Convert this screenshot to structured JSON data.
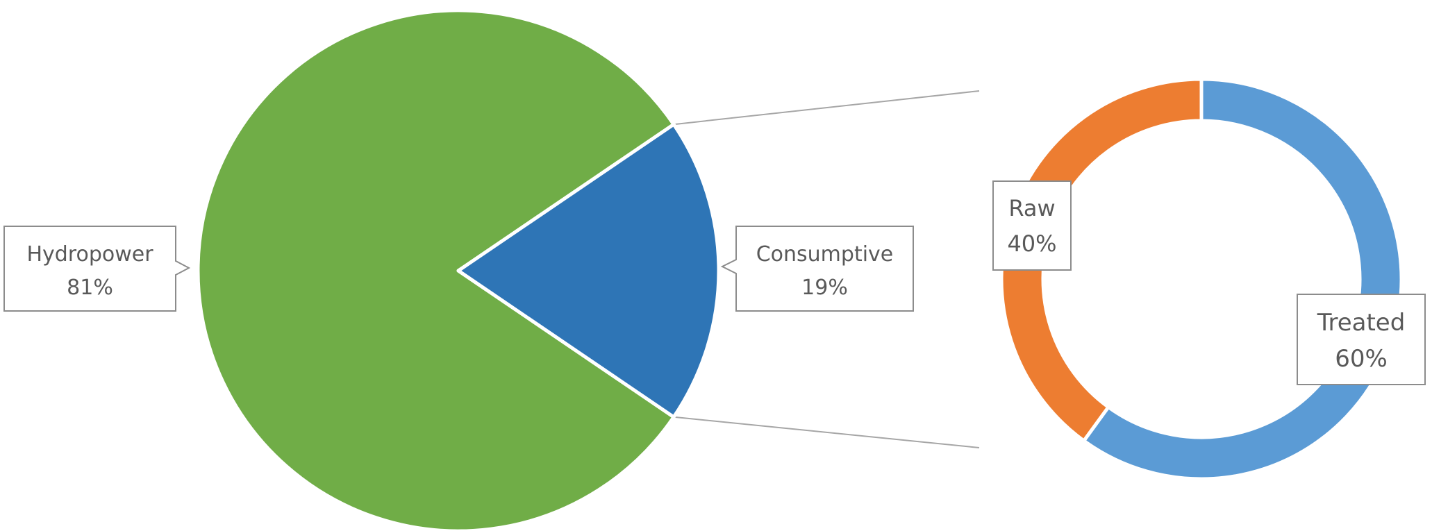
{
  "chart_data": [
    {
      "type": "pie",
      "slices": [
        {
          "label": "Hydropower",
          "value": 81,
          "value_label": "81%",
          "color": "#70AD47"
        },
        {
          "label": "Consumptive",
          "value": 19,
          "value_label": "19%",
          "color": "#2E75B6"
        }
      ]
    },
    {
      "type": "pie",
      "variant": "donut",
      "slices": [
        {
          "label": "Treated",
          "value": 60,
          "value_label": "60%",
          "color": "#5B9BD5"
        },
        {
          "label": "Raw",
          "value": 40,
          "value_label": "40%",
          "color": "#ED7D31"
        }
      ]
    }
  ],
  "connector_color": "#A6A6A6",
  "callout_border_color": "#8C8C8C",
  "label_color": "#595959"
}
